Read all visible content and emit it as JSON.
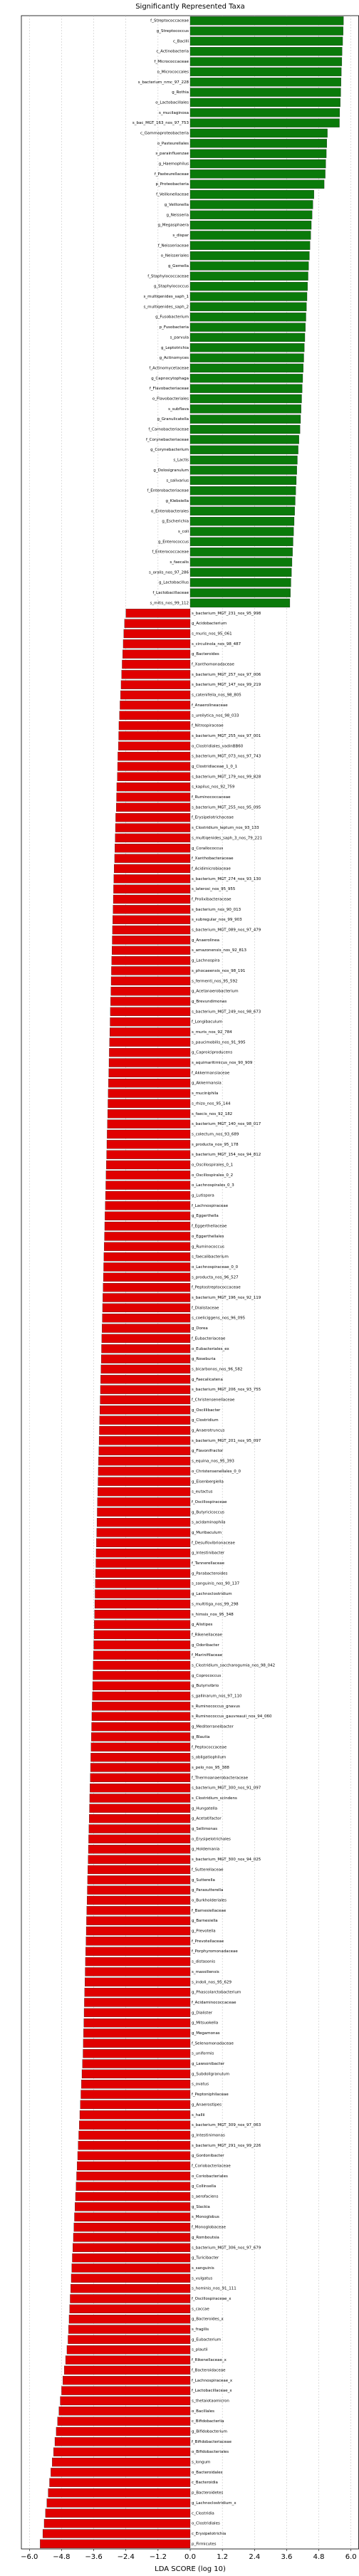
{
  "chart_data": {
    "type": "barh",
    "title": "Significantly Represented Taxa",
    "xlabel": "LDA SCORE (log 10)",
    "xlim": [
      -6.3,
      6.3
    ],
    "xticks": [
      {
        "value": -6,
        "label": "−6.0"
      },
      {
        "value": -4.8,
        "label": "−4.8"
      },
      {
        "value": -3.6,
        "label": "−3.6"
      },
      {
        "value": -2.4,
        "label": "−2.4"
      },
      {
        "value": -1.2,
        "label": "−1.2"
      },
      {
        "value": 0,
        "label": "0.0"
      },
      1.2,
      2.4,
      3.6,
      4.8,
      {
        "value": 6,
        "label": "6.0"
      }
    ],
    "grid": true,
    "color_positive": "#0a7a0a",
    "color_negative": "#e00000",
    "categories": [
      "f_Streptococcaceae",
      "g_Streptococcus",
      "c_Bacilli",
      "c_Actinobacteria",
      "f_Micrococcaceae",
      "o_Micrococcales",
      "s_bacterium_nmc_97_228",
      "g_Rothia",
      "o_Lactobacillales",
      "s_mucilaginosa",
      "s_bac_MGT_163_nos_97_753",
      "c_Gammaproteobacteria",
      "o_Pasteurellales",
      "s_parainfluenzae",
      "g_Haemophilus",
      "f_Pasteurellaceae",
      "p_Proteobacteria",
      "f_Veillonellaceae",
      "g_Veillonella",
      "g_Neisseria",
      "g_Megasphaera",
      "s_dispar",
      "f_Neisseriaceae",
      "o_Neisseriales",
      "g_Gemella",
      "f_Staphylococcaceae",
      "g_Staphylococcus",
      "s_multiqenides_saph_1",
      "s_multiqenides_saph_2",
      "g_Fusobacterium",
      "p_Fusobacteria",
      "s_parvula",
      "g_Leptotrichia",
      "g_Actinomyces",
      "f_Actinomycetaceae",
      "g_Capnocytophaga",
      "f_Flavobacteriaceae",
      "o_Flavobacteriales",
      "s_subflava",
      "g_Granulicatella",
      "f_Carnobacteriaceae",
      "f_Corynebacteriaceae",
      "g_Corynebacterium",
      "s_Lactis",
      "g_Dolosigranulum",
      "s_salivarius",
      "f_Enterobacteriaceae",
      "g_Klebsiella",
      "o_Enterobacterales",
      "g_Escherichia",
      "s_coli",
      "g_Enterococcus",
      "f_Enterococcaceae",
      "s_faecalis",
      "s_oralis_nos_97_286",
      "g_Lactobacillus",
      "f_Lactobacillaceae",
      "s_mitis_nos_99_112",
      "s_bacterium_MGT_231_nos_95_998",
      "g_Acidobacterium",
      "s_muris_nos_95_061",
      "s_circulinola_nos_98_487",
      "g_Bacteroides",
      "f_Xanthomonadaceae",
      "s_bacterium_MGT_257_nos_97_006",
      "s_bacterium_MGT_147_nos_99_219",
      "s_catenifeila_nos_98_805",
      "f_Anaerolineaceae",
      "s_ureilytica_nos_98_033",
      "f_Nitrospiraceae",
      "s_bacterium_MGT_255_nos_97_001",
      "o_Clostridiales_vadinBB60",
      "s_bacterium_MGT_073_nos_97_743",
      "g_Clostridiaceae_1_0_1",
      "s_bacterium_MGT_179_nos_99_828",
      "s_kapilus_nos_92_759",
      "f_Ruminococcaceae",
      "s_bacterium_MGT_255_nos_95_095",
      "f_Erysipelotrichaceae",
      "s_Clostridium_leptum_nos_93_133",
      "s_multiqenides_saph_3_nos_79_221",
      "g_Corallococcus",
      "f_Xanthobacteraceae",
      "f_Acidimicrobiaceae",
      "s_bacterium_MGT_274_nos_93_130",
      "s_laterosi_nos_95_955",
      "f_Prolixibacteraceae",
      "s_bacterium_nos_90_013",
      "s_subregular_nos_99_903",
      "s_bacterium_MGT_089_nos_97_479",
      "g_Anaerolinea",
      "s_amazonensis_nos_92_813",
      "g_Lachnospira",
      "s_phocaeensis_nos_98_191",
      "s_fermenti_nos_95_592",
      "g_Acetanaerobacterium",
      "g_Brevundimonas",
      "s_bacterium_MGT_249_nos_98_673",
      "f_Longibaculum",
      "s_muris_nos_92_784",
      "s_paucimobilis_nos_91_995",
      "g_Caproiciproducens",
      "s_aquimaritimicus_nos_90_909",
      "f_Akkermansiaceae",
      "g_Akkermansia",
      "s_muciniphila",
      "s_rhizo_nos_95_144",
      "s_faecis_nos_92_182",
      "s_bacterium_MGT_140_nos_98_017",
      "s_colectum_nos_93_689",
      "s_producta_nos_95_178",
      "s_bacterium_MGT_154_nos_94_812",
      "o_Oscillospirales_0_1",
      "o_Oscillospirales_0_2",
      "o_Lachnospirales_0_3",
      "g_Lutispora",
      "f_Lachnospiraceae",
      "g_Eggerthella",
      "f_Eggerthellaceae",
      "o_Eggerthellales",
      "g_Ruminococcus",
      "s_faecalibacterium",
      "o_Lachnospiraceae_0_0",
      "s_producta_nos_96_527",
      "f_Peptostreptococcaceae",
      "s_bacterium_MGT_196_nos_92_119",
      "f_Dialistaceae",
      "s_coeliciggens_nos_96_095",
      "g_Dorea",
      "f_Eubacteriaceae",
      "o_Eubacteriales_ex",
      "g_Roseburia",
      "s_bicarbonos_nos_96_582",
      "g_Faecalicatena",
      "s_bacterium_MGT_206_nos_93_755",
      "f_Christensenellaceae",
      "g_Oscillibacter",
      "g_Clostridium",
      "g_Anaerotruncus",
      "s_bacterium_MGT_201_nos_95_097",
      "g_Flavonifractor",
      "s_equina_nos_95_393",
      "o_Christensenellales_0_0",
      "g_Eisenbergiella",
      "s_eutactus",
      "f_Oscillospiraceae",
      "g_Butyricicoccus",
      "s_acidaminophila",
      "g_Muribaculum",
      "f_Desulfovibrionaceae",
      "g_Intestinibacter",
      "f_Tannerellaceae",
      "g_Parabacteroides",
      "s_sanguinis_nos_90_137",
      "g_Lachnoclostridium",
      "s_multitiga_nos_99_298",
      "s_himsis_nos_95_348",
      "g_Alistipes",
      "f_Rikenellaceae",
      "g_Odoribacter",
      "f_Marinifilaceae",
      "s_Clostridium_saccharogumia_nos_98_042",
      "g_Coprococcus",
      "g_Butyrivibrio",
      "s_gallinarum_nos_97_110",
      "s_Ruminococcus_gnavus",
      "s_Ruminococcus_gauvreauii_nos_94_060",
      "g_Mediterraneibacter",
      "g_Blautia",
      "f_Peptococcaceae",
      "s_obligatiophilum",
      "s_pelo_nos_95_388",
      "f_Thermoanaerobacteraceae",
      "s_bacterium_MGT_300_nos_91_097",
      "s_Clostridium_scindens",
      "g_Hungatella",
      "g_Acetatifactor",
      "g_Sellimonas",
      "o_Erysipelotrichales",
      "g_Holdemania",
      "s_bacterium_MGT_300_nos_94_025",
      "f_Sutterellaceae",
      "g_Sutterella",
      "g_Parasutterella",
      "o_Burkholderiales",
      "f_Barnesiellaceae",
      "g_Barnesiella",
      "g_Prevotella",
      "f_Prevotellaceae",
      "f_Porphyromonadaceae",
      "s_distasonis",
      "s_massiliensis",
      "s_indoli_nos_95_629",
      "g_Phascolarctobacterium",
      "f_Acidaminococcaceae",
      "g_Dialister",
      "g_Mitsuokella",
      "g_Megamonas",
      "f_Selenomonadaceae",
      "s_uniformis",
      "g_Lawsonibacter",
      "g_Subdoligranulum",
      "s_ovatus",
      "f_Peptoniphilaceae",
      "g_Anaerostipes",
      "s_hallii",
      "s_bacterium_MGT_309_nos_97_063",
      "g_Intestinimonas",
      "s_bacterium_MGT_291_nos_99_226",
      "g_Gordonibacter",
      "f_Coriobacteriaceae",
      "o_Coriobacteriales",
      "g_Collinsella",
      "s_aerofaciens",
      "g_Slackia",
      "s_Monoglobus",
      "f_Monoglobaceae",
      "g_Romboutsia",
      "s_bacterium_MGT_306_nos_97_679",
      "g_Turicibacter",
      "s_sanguinis",
      "s_vulgatus",
      "s_hominis_nos_91_111",
      "f_Oscillospiraceae_x",
      "s_caccae",
      "g_Bacteroides_x",
      "s_fragilis",
      "g_Eubacterium",
      "s_plautii",
      "f_Rikenellaceae_x",
      "f_Bacteroidaceae",
      "f_Lachnospiraceae_x",
      "f_Lactobacillaceae_x",
      "s_thetaiotaomicron",
      "o_Bacillales",
      "c_Bifidobacteriia",
      "g_Bifidobacterium",
      "f_Bifidobacteriaceae",
      "o_Bifidobacteriales",
      "s_longum",
      "o_Bacteroidales",
      "c_Bacteroidia",
      "p_Bacteroidetes",
      "g_Lachnoclostridium_x",
      "c_Clostridia",
      "o_Clostridiales",
      "c_Erysipelotrichia",
      "p_Firmicutes"
    ],
    "values": [
      5.72,
      5.71,
      5.69,
      5.67,
      5.66,
      5.64,
      5.63,
      5.62,
      5.6,
      5.58,
      5.57,
      5.12,
      5.1,
      5.08,
      5.06,
      5.04,
      5.0,
      4.62,
      4.58,
      4.55,
      4.52,
      4.5,
      4.47,
      4.45,
      4.42,
      4.4,
      4.38,
      4.36,
      4.34,
      4.32,
      4.3,
      4.28,
      4.26,
      4.24,
      4.22,
      4.2,
      4.18,
      4.16,
      4.14,
      4.12,
      4.1,
      4.06,
      4.03,
      4.0,
      3.98,
      3.96,
      3.94,
      3.92,
      3.9,
      3.88,
      3.86,
      3.84,
      3.82,
      3.8,
      3.78,
      3.76,
      3.74,
      3.72,
      -2.4,
      -2.45,
      -2.48,
      -2.5,
      -2.52,
      -2.54,
      -2.56,
      -2.58,
      -2.6,
      -2.62,
      -2.64,
      -2.66,
      -2.67,
      -2.68,
      -2.7,
      -2.71,
      -2.72,
      -2.74,
      -2.75,
      -2.76,
      -2.78,
      -2.79,
      -2.8,
      -2.81,
      -2.82,
      -2.84,
      -2.85,
      -2.86,
      -2.87,
      -2.88,
      -2.89,
      -2.9,
      -2.91,
      -2.92,
      -2.93,
      -2.94,
      -2.95,
      -2.96,
      -2.97,
      -2.98,
      -2.99,
      -3.0,
      -3.01,
      -3.02,
      -3.03,
      -3.04,
      -3.05,
      -3.06,
      -3.07,
      -3.08,
      -3.09,
      -3.1,
      -3.11,
      -3.12,
      -3.13,
      -3.14,
      -3.15,
      -3.16,
      -3.17,
      -3.18,
      -3.19,
      -3.2,
      -3.21,
      -3.22,
      -3.23,
      -3.24,
      -3.25,
      -3.26,
      -3.27,
      -3.28,
      -3.29,
      -3.3,
      -3.31,
      -3.32,
      -3.33,
      -3.34,
      -3.35,
      -3.36,
      -3.37,
      -3.38,
      -3.39,
      -3.4,
      -3.41,
      -3.42,
      -3.43,
      -3.44,
      -3.45,
      -3.46,
      -3.47,
      -3.48,
      -3.49,
      -3.5,
      -3.51,
      -3.52,
      -3.53,
      -3.54,
      -3.55,
      -3.56,
      -3.57,
      -3.58,
      -3.59,
      -3.6,
      -3.61,
      -3.62,
      -3.63,
      -3.64,
      -3.65,
      -3.66,
      -3.67,
      -3.68,
      -3.69,
      -3.7,
      -3.71,
      -3.72,
      -3.73,
      -3.74,
      -3.75,
      -3.76,
      -3.77,
      -3.78,
      -3.79,
      -3.8,
      -3.81,
      -3.82,
      -3.83,
      -3.84,
      -3.85,
      -3.86,
      -3.87,
      -3.88,
      -3.89,
      -3.9,
      -3.91,
      -3.92,
      -3.93,
      -3.94,
      -3.95,
      -3.96,
      -3.97,
      -3.98,
      -3.99,
      -4.0,
      -4.02,
      -4.04,
      -4.06,
      -4.08,
      -4.1,
      -4.12,
      -4.14,
      -4.16,
      -4.18,
      -4.2,
      -4.22,
      -4.24,
      -4.26,
      -4.28,
      -4.3,
      -4.32,
      -4.34,
      -4.36,
      -4.38,
      -4.4,
      -4.42,
      -4.44,
      -4.46,
      -4.48,
      -4.5,
      -4.52,
      -4.54,
      -4.56,
      -4.6,
      -4.65,
      -4.7,
      -4.75,
      -4.8,
      -4.85,
      -4.9,
      -4.95,
      -5.0,
      -5.05,
      -5.1,
      -5.15,
      -5.2,
      -5.25,
      -5.3,
      -5.35,
      -5.4,
      -5.45,
      -5.5,
      -5.6
    ]
  }
}
